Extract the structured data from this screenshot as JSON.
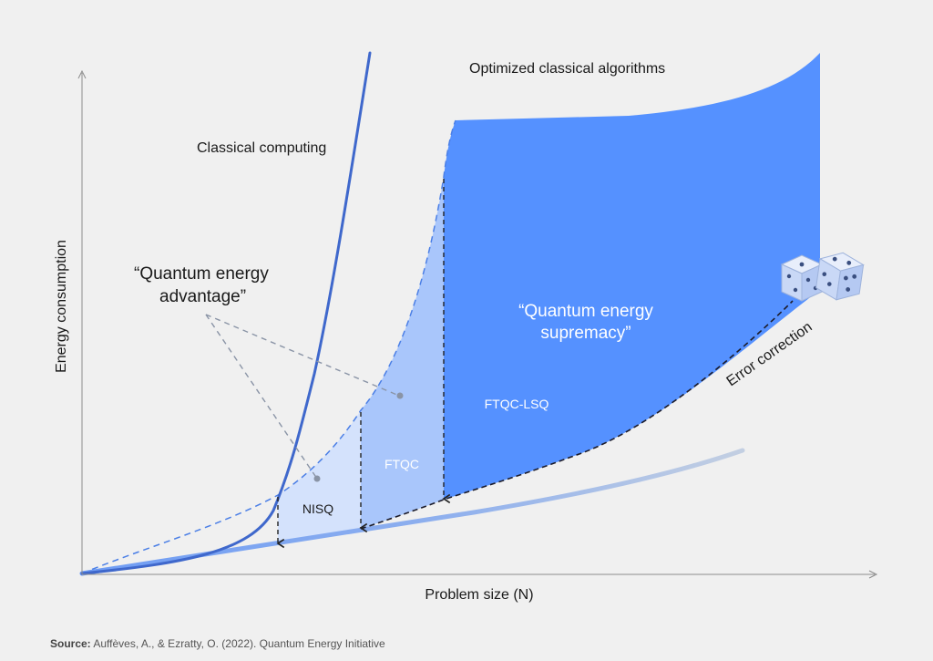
{
  "axes": {
    "y_label": "Energy consumption",
    "x_label": "Problem size (N)"
  },
  "labels": {
    "classical_computing": "Classical computing",
    "optimized_classical": "Optimized classical algorithms",
    "advantage_line1": "“Quantum energy",
    "advantage_line2": "advantage”",
    "supremacy_line1": "“Quantum energy",
    "supremacy_line2": "supremacy”",
    "nisq": "NISQ",
    "ftqc": "FTQC",
    "ftqc_lsq": "FTQC-LSQ",
    "error_correction": "Error correction"
  },
  "source": {
    "prefix": "Source:",
    "text": "Auffèves, A., & Ezratty, O. (2022). Quantum Energy Initiative"
  },
  "colors": {
    "background": "#f0f0f0",
    "supremacy_fill": "#5591ff",
    "ftqc_fill": "#a9c6fb",
    "nisq_fill": "#d4e2fc",
    "classical_line": "#3f68cc",
    "quantum_baseline": "#7ea3f2",
    "axis": "#8c8c8c",
    "annotation": "#8a94a6"
  }
}
